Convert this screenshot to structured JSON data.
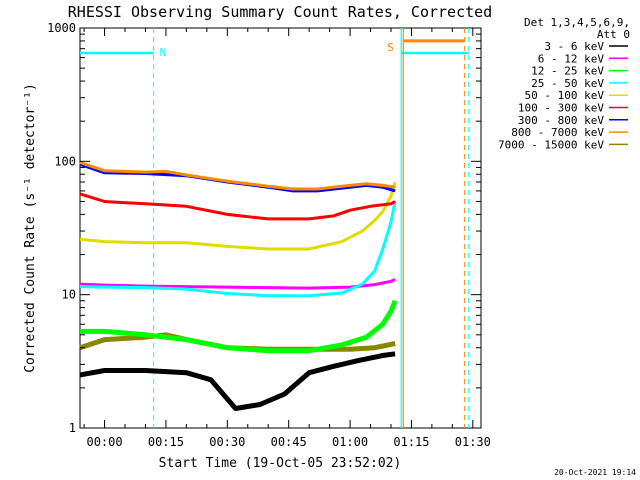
{
  "chart_data": {
    "type": "line",
    "title": "RHESSI Observing Summary Count Rates, Corrected",
    "xlabel": "Start Time (19-Oct-05 23:52:02)",
    "ylabel": "Corrected Count Rate (s⁻¹ detector⁻¹)",
    "x_axis": {
      "start_minutes": -6,
      "end_minutes": 92,
      "tick_labels": [
        "00:00",
        "00:15",
        "00:30",
        "00:45",
        "01:00",
        "01:15",
        "01:30"
      ],
      "tick_minutes": [
        0,
        15,
        30,
        45,
        60,
        75,
        90
      ]
    },
    "y_axis": {
      "scale": "log",
      "ylim": [
        1,
        1000
      ],
      "tick_labels": [
        "1",
        "10",
        "100",
        "1000"
      ],
      "tick_values": [
        1,
        10,
        100,
        1000
      ]
    },
    "legend": {
      "placement": "right",
      "header": [
        "Det 1,3,4,5,6,9,",
        "Att 0"
      ]
    },
    "series": [
      {
        "name": "3 - 6 keV",
        "color": "#000000",
        "points": [
          [
            -6,
            2.5
          ],
          [
            0,
            2.7
          ],
          [
            10,
            2.7
          ],
          [
            20,
            2.6
          ],
          [
            26,
            2.3
          ],
          [
            32,
            1.4
          ],
          [
            38,
            1.5
          ],
          [
            44,
            1.8
          ],
          [
            50,
            2.6
          ],
          [
            56,
            2.9
          ],
          [
            62,
            3.2
          ],
          [
            68,
            3.5
          ],
          [
            71,
            3.6
          ]
        ]
      },
      {
        "name": "6 - 12 keV",
        "color": "#ff00ff",
        "points": [
          [
            -6,
            12
          ],
          [
            0,
            11.8
          ],
          [
            10,
            11.6
          ],
          [
            20,
            11.5
          ],
          [
            30,
            11.4
          ],
          [
            40,
            11.3
          ],
          [
            50,
            11.2
          ],
          [
            60,
            11.4
          ],
          [
            66,
            11.9
          ],
          [
            70,
            12.6
          ],
          [
            71,
            13
          ]
        ]
      },
      {
        "name": "12 - 25 keV",
        "color": "#00ff00",
        "points": [
          [
            -6,
            5.3
          ],
          [
            0,
            5.3
          ],
          [
            10,
            5
          ],
          [
            20,
            4.6
          ],
          [
            30,
            4
          ],
          [
            40,
            3.8
          ],
          [
            50,
            3.8
          ],
          [
            58,
            4.2
          ],
          [
            64,
            4.8
          ],
          [
            68,
            6
          ],
          [
            70,
            7.5
          ],
          [
            71,
            9
          ]
        ]
      },
      {
        "name": "25 - 50 keV",
        "color": "#00ffff",
        "points": [
          [
            -6,
            11.5
          ],
          [
            0,
            11.4
          ],
          [
            10,
            11.3
          ],
          [
            20,
            11
          ],
          [
            30,
            10.2
          ],
          [
            40,
            9.8
          ],
          [
            50,
            9.8
          ],
          [
            58,
            10.3
          ],
          [
            63,
            12
          ],
          [
            66,
            15
          ],
          [
            68,
            22
          ],
          [
            70,
            35
          ],
          [
            71,
            50
          ]
        ]
      },
      {
        "name": "50 - 100 keV",
        "color": "#dddd00",
        "points": [
          [
            -6,
            26
          ],
          [
            0,
            25
          ],
          [
            10,
            24.5
          ],
          [
            20,
            24.5
          ],
          [
            30,
            23
          ],
          [
            40,
            22
          ],
          [
            50,
            22
          ],
          [
            58,
            25
          ],
          [
            63,
            30
          ],
          [
            66,
            36
          ],
          [
            68,
            42
          ],
          [
            70,
            55
          ],
          [
            71,
            70
          ]
        ]
      },
      {
        "name": "100 - 300 keV",
        "color": "#ff0000",
        "points": [
          [
            -6,
            57
          ],
          [
            0,
            50
          ],
          [
            10,
            48
          ],
          [
            20,
            46
          ],
          [
            30,
            40
          ],
          [
            40,
            37
          ],
          [
            50,
            37
          ],
          [
            56,
            39
          ],
          [
            60,
            43
          ],
          [
            65,
            46
          ],
          [
            70,
            48
          ],
          [
            71,
            50
          ]
        ]
      },
      {
        "name": "300 - 800 keV",
        "color": "#0000ff",
        "points": [
          [
            -6,
            95
          ],
          [
            0,
            82
          ],
          [
            10,
            81
          ],
          [
            20,
            78
          ],
          [
            30,
            70
          ],
          [
            40,
            64
          ],
          [
            46,
            60
          ],
          [
            52,
            60
          ],
          [
            58,
            63
          ],
          [
            64,
            66
          ],
          [
            68,
            64
          ],
          [
            71,
            60
          ]
        ]
      },
      {
        "name": "800 - 7000 keV",
        "color": "#ff8800",
        "points": [
          [
            -6,
            98
          ],
          [
            0,
            85
          ],
          [
            10,
            83
          ],
          [
            15,
            84
          ],
          [
            20,
            79
          ],
          [
            30,
            71
          ],
          [
            40,
            65
          ],
          [
            46,
            62
          ],
          [
            52,
            62
          ],
          [
            58,
            65
          ],
          [
            64,
            68
          ],
          [
            68,
            66
          ],
          [
            71,
            64
          ]
        ],
        "late_level": 800,
        "late_range": [
          73,
          88
        ]
      },
      {
        "name": "7000 - 15000 keV",
        "color": "#888800",
        "points": [
          [
            -6,
            4
          ],
          [
            0,
            4.6
          ],
          [
            10,
            4.8
          ],
          [
            15,
            5
          ],
          [
            20,
            4.6
          ],
          [
            30,
            4
          ],
          [
            40,
            3.9
          ],
          [
            50,
            3.9
          ],
          [
            60,
            3.9
          ],
          [
            66,
            4
          ],
          [
            71,
            4.3
          ]
        ]
      }
    ],
    "annotations": {
      "night_label": "N",
      "saa_label": "S",
      "night_level": 650,
      "night_segments": [
        [
          -6,
          12
        ],
        [
          72.5,
          89
        ]
      ],
      "night_boundaries": [
        12,
        72.5,
        89
      ],
      "saa_boundaries": [
        73,
        88
      ]
    },
    "footer_date": "20-Oct-2021 19:14"
  },
  "colors": {
    "night": "#00ffff",
    "saa": "#ff8800",
    "axis": "#000000"
  }
}
